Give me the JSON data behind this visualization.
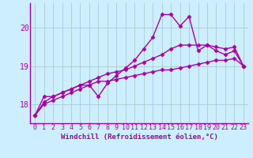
{
  "title": "",
  "xlabel": "Windchill (Refroidissement éolien,°C)",
  "ylabel": "",
  "background_color": "#cceeff",
  "grid_color": "#aacccc",
  "line_color": "#aa00aa",
  "x_values": [
    0,
    1,
    2,
    3,
    4,
    5,
    6,
    7,
    8,
    9,
    10,
    11,
    12,
    13,
    14,
    15,
    16,
    17,
    18,
    19,
    20,
    21,
    22,
    23
  ],
  "series1": [
    17.7,
    18.2,
    18.2,
    18.3,
    18.4,
    18.5,
    18.5,
    18.2,
    18.55,
    18.75,
    18.95,
    19.15,
    19.45,
    19.75,
    20.35,
    20.35,
    20.05,
    20.3,
    19.4,
    19.55,
    19.4,
    19.3,
    19.4,
    19.0
  ],
  "series2": [
    17.7,
    18.05,
    18.2,
    18.3,
    18.4,
    18.5,
    18.6,
    18.7,
    18.8,
    18.85,
    18.9,
    19.0,
    19.1,
    19.2,
    19.3,
    19.45,
    19.55,
    19.55,
    19.55,
    19.55,
    19.5,
    19.45,
    19.5,
    19.0
  ],
  "series3": [
    17.7,
    18.0,
    18.1,
    18.2,
    18.3,
    18.4,
    18.5,
    18.6,
    18.6,
    18.65,
    18.7,
    18.75,
    18.8,
    18.85,
    18.9,
    18.9,
    18.95,
    19.0,
    19.05,
    19.1,
    19.15,
    19.15,
    19.2,
    19.0
  ],
  "ylim": [
    17.5,
    20.65
  ],
  "yticks": [
    18,
    19,
    20
  ],
  "xlim": [
    -0.5,
    23.5
  ],
  "marker": "D",
  "marker_size": 2.5,
  "line_width": 1.0,
  "tick_fontsize": 6,
  "xlabel_fontsize": 6.5
}
